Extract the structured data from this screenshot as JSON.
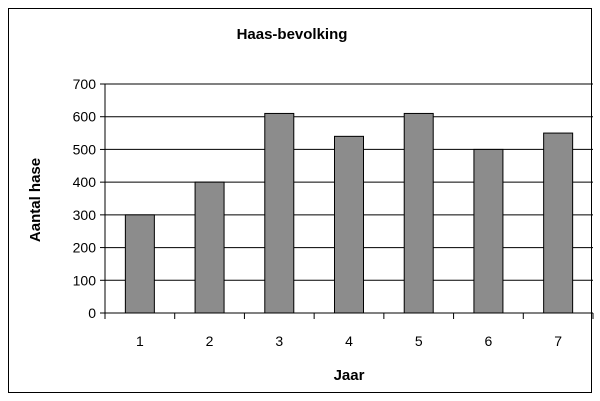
{
  "chart_data": {
    "type": "bar",
    "title": "Haas-bevolking",
    "xlabel": "Jaar",
    "ylabel": "Aantal hase",
    "categories": [
      "1",
      "2",
      "3",
      "4",
      "5",
      "6",
      "7"
    ],
    "values": [
      300,
      400,
      610,
      540,
      610,
      500,
      550
    ],
    "ylim": [
      0,
      700
    ],
    "yticks": [
      0,
      100,
      200,
      300,
      400,
      500,
      600,
      700
    ],
    "grid": true,
    "bar_color": "#8c8c8c",
    "grid_color": "#000000"
  }
}
